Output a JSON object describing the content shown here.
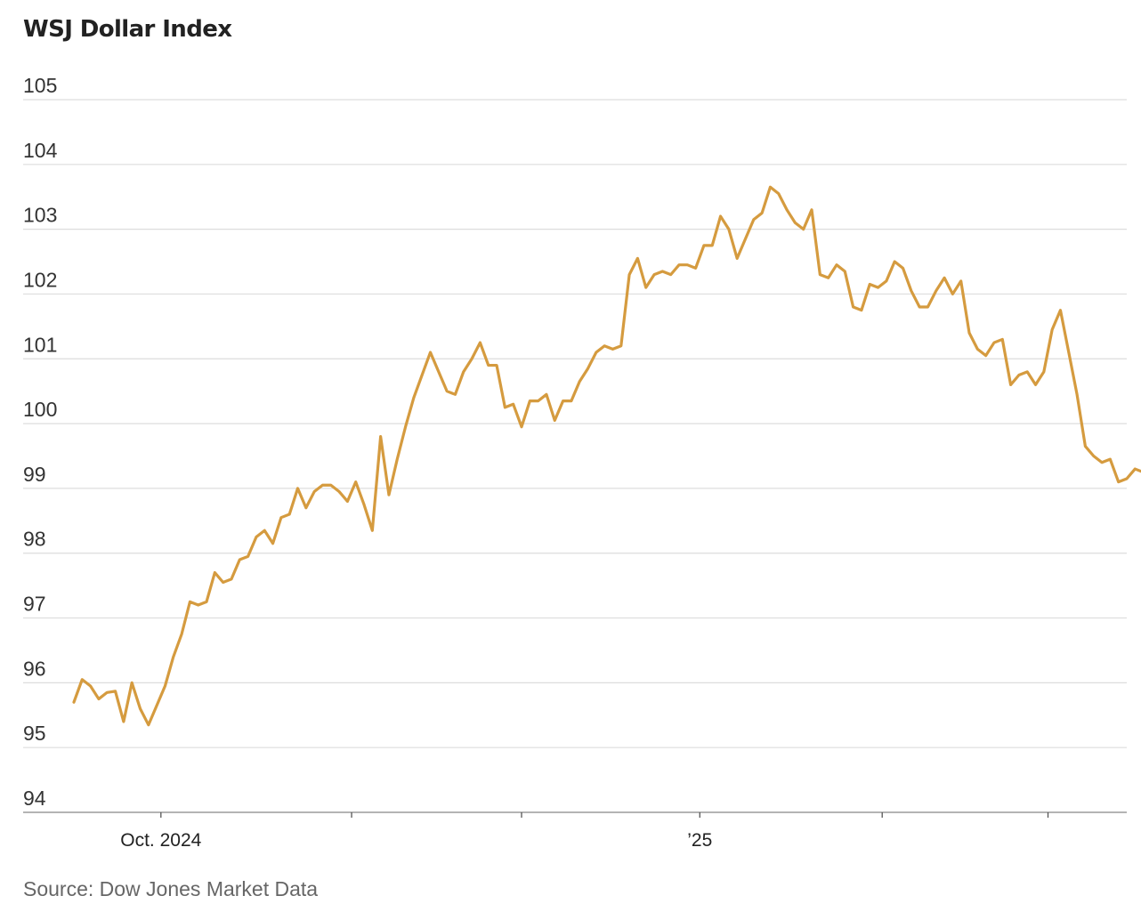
{
  "chart_data": {
    "type": "line",
    "title": "WSJ Dollar Index",
    "source": "Source: Dow Jones Market Data",
    "xlabel": "",
    "ylabel": "",
    "ylim": [
      94,
      105
    ],
    "yticks": [
      94,
      95,
      96,
      97,
      98,
      99,
      100,
      101,
      102,
      103,
      104,
      105
    ],
    "grid": true,
    "legend": "none",
    "line_color": "#d59b3f",
    "x_tick_labels": [
      "Oct. 2024",
      "’25"
    ],
    "x_major_ticks": [
      10.5,
      75.5
    ],
    "x_minor_ticks": [
      33.5,
      54,
      97.5,
      117.5
    ],
    "x_range": [
      0,
      127
    ],
    "series": [
      {
        "values": [
          95.7,
          96.05,
          95.95,
          95.75,
          95.85,
          95.87,
          95.4,
          96.0,
          95.6,
          95.35,
          95.65,
          95.95,
          96.4,
          96.75,
          97.25,
          97.2,
          97.25,
          97.7,
          97.55,
          97.6,
          97.9,
          97.95,
          98.25,
          98.35,
          98.15,
          98.55,
          98.6,
          99.0,
          98.7,
          98.95,
          99.05,
          99.05,
          98.95,
          98.8,
          99.1,
          98.75,
          98.35,
          99.8,
          98.9,
          99.45,
          99.95,
          100.4,
          100.75,
          101.1,
          100.8,
          100.5,
          100.45,
          100.8,
          101.0,
          101.25,
          100.9,
          100.9,
          100.25,
          100.3,
          99.95,
          100.35,
          100.35,
          100.45,
          100.05,
          100.35,
          100.35,
          100.65,
          100.85,
          101.1,
          101.2,
          101.15,
          101.2,
          102.3,
          102.55,
          102.1,
          102.3,
          102.35,
          102.3,
          102.45,
          102.45,
          102.4,
          102.75,
          102.75,
          103.2,
          103.0,
          102.55,
          102.85,
          103.15,
          103.25,
          103.65,
          103.55,
          103.3,
          103.1,
          103.0,
          103.3,
          102.3,
          102.25,
          102.45,
          102.35,
          101.8,
          101.75,
          102.15,
          102.1,
          102.2,
          102.5,
          102.4,
          102.05,
          101.8,
          101.8,
          102.05,
          102.25,
          102.0,
          102.2,
          101.4,
          101.15,
          101.05,
          101.25,
          101.3,
          100.6,
          100.75,
          100.8,
          100.6,
          100.8,
          101.45,
          101.75,
          101.1,
          100.45,
          99.65,
          99.5,
          99.4,
          99.45,
          99.1,
          99.15,
          99.3,
          99.25
        ]
      }
    ]
  }
}
